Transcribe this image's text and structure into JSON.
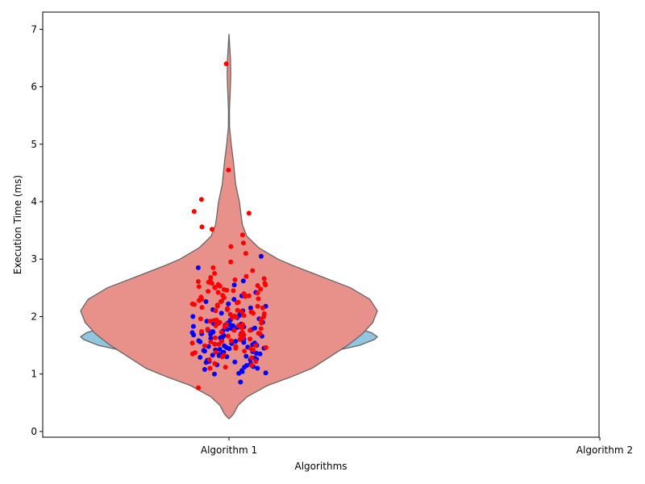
{
  "chart_data": {
    "type": "violin",
    "title": "",
    "xlabel": "Algorithms",
    "ylabel": "Execution Time (ms)",
    "categories": [
      "Algorithm 1",
      "Algorithm 2"
    ],
    "ylim": [
      -0.1,
      7.3
    ],
    "yticks": [
      0,
      1,
      2,
      3,
      4,
      5,
      6,
      7
    ],
    "grid": false,
    "legend": "none",
    "violins": [
      {
        "category": "Algorithm 1",
        "color": "#92c6df",
        "edge_color": "#666666",
        "ymin": 0.95,
        "ymax": 2.3,
        "profile": [
          [
            0.95,
            0.0
          ],
          [
            1.05,
            0.12
          ],
          [
            1.2,
            0.35
          ],
          [
            1.35,
            0.62
          ],
          [
            1.5,
            0.88
          ],
          [
            1.6,
            0.98
          ],
          [
            1.65,
            1.0
          ],
          [
            1.72,
            0.96
          ],
          [
            1.8,
            0.86
          ],
          [
            1.9,
            0.72
          ],
          [
            2.0,
            0.55
          ],
          [
            2.1,
            0.38
          ],
          [
            2.2,
            0.2
          ],
          [
            2.3,
            0.0
          ]
        ]
      },
      {
        "category": "Algorithm 1",
        "color": "#e8908a",
        "edge_color": "#666666",
        "ymin": 0.22,
        "ymax": 6.92,
        "profile": [
          [
            0.22,
            0.0
          ],
          [
            0.3,
            0.03
          ],
          [
            0.45,
            0.06
          ],
          [
            0.6,
            0.12
          ],
          [
            0.8,
            0.26
          ],
          [
            0.95,
            0.42
          ],
          [
            1.1,
            0.56
          ],
          [
            1.3,
            0.68
          ],
          [
            1.5,
            0.8
          ],
          [
            1.7,
            0.9
          ],
          [
            1.9,
            0.97
          ],
          [
            2.1,
            1.0
          ],
          [
            2.3,
            0.95
          ],
          [
            2.5,
            0.82
          ],
          [
            2.7,
            0.62
          ],
          [
            2.9,
            0.42
          ],
          [
            3.0,
            0.33
          ],
          [
            3.2,
            0.2
          ],
          [
            3.4,
            0.12
          ],
          [
            3.6,
            0.09
          ],
          [
            3.8,
            0.08
          ],
          [
            4.0,
            0.07
          ],
          [
            4.3,
            0.045
          ],
          [
            4.7,
            0.03
          ],
          [
            5.0,
            0.015
          ],
          [
            5.3,
            0.004
          ],
          [
            5.6,
            0.003
          ],
          [
            5.9,
            0.008
          ],
          [
            6.2,
            0.012
          ],
          [
            6.5,
            0.01
          ],
          [
            6.7,
            0.005
          ],
          [
            6.92,
            0.0
          ]
        ]
      }
    ],
    "series": [
      {
        "category": "Algorithm 1",
        "color": "#0000ff",
        "values": [
          0.86,
          1.0,
          1.01,
          1.02,
          1.04,
          1.06,
          1.08,
          1.1,
          1.12,
          1.13,
          1.15,
          1.16,
          1.18,
          1.2,
          1.21,
          1.22,
          1.24,
          1.25,
          1.26,
          1.28,
          1.29,
          1.3,
          1.31,
          1.32,
          1.33,
          1.34,
          1.35,
          1.36,
          1.37,
          1.38,
          1.39,
          1.4,
          1.41,
          1.42,
          1.43,
          1.44,
          1.45,
          1.46,
          1.47,
          1.48,
          1.49,
          1.5,
          1.51,
          1.52,
          1.53,
          1.54,
          1.55,
          1.56,
          1.57,
          1.58,
          1.59,
          1.6,
          1.61,
          1.62,
          1.63,
          1.64,
          1.65,
          1.66,
          1.67,
          1.68,
          1.69,
          1.7,
          1.71,
          1.72,
          1.73,
          1.74,
          1.75,
          1.76,
          1.77,
          1.78,
          1.79,
          1.8,
          1.81,
          1.82,
          1.83,
          1.84,
          1.85,
          1.86,
          1.87,
          1.88,
          1.89,
          1.9,
          1.92,
          1.94,
          1.96,
          1.98,
          2.0,
          2.02,
          2.04,
          2.06,
          2.08,
          2.1,
          2.12,
          2.15,
          2.18,
          2.22,
          2.26,
          2.3,
          2.36,
          2.42,
          2.55,
          2.62,
          2.85,
          3.05
        ]
      },
      {
        "category": "Algorithm 1",
        "color": "#ff0000",
        "values": [
          0.76,
          1.1,
          1.12,
          1.15,
          1.18,
          1.22,
          1.25,
          1.28,
          1.3,
          1.33,
          1.35,
          1.38,
          1.4,
          1.42,
          1.44,
          1.46,
          1.48,
          1.5,
          1.52,
          1.54,
          1.56,
          1.58,
          1.6,
          1.62,
          1.64,
          1.66,
          1.68,
          1.7,
          1.72,
          1.74,
          1.76,
          1.78,
          1.8,
          1.82,
          1.84,
          1.86,
          1.88,
          1.9,
          1.92,
          1.94,
          1.96,
          1.98,
          2.0,
          2.02,
          2.04,
          2.06,
          2.08,
          2.1,
          2.12,
          2.14,
          2.16,
          2.18,
          2.2,
          2.22,
          2.24,
          2.26,
          2.28,
          2.3,
          2.32,
          2.34,
          2.36,
          2.38,
          2.4,
          2.42,
          2.44,
          2.46,
          2.48,
          2.5,
          2.52,
          2.54,
          2.56,
          2.58,
          2.6,
          2.62,
          2.64,
          2.66,
          2.68,
          2.7,
          2.75,
          2.8,
          2.85,
          2.95,
          3.1,
          3.22,
          3.28,
          3.42,
          3.52,
          3.56,
          3.8,
          3.83,
          4.04,
          4.55,
          6.4,
          1.52,
          1.68,
          1.84,
          2.01,
          2.18,
          2.33,
          2.47,
          1.45,
          1.63,
          1.79,
          1.95,
          2.11,
          2.27,
          2.41,
          2.58,
          1.37,
          1.57,
          1.73,
          1.89,
          2.05,
          2.21,
          2.37,
          2.53,
          1.49,
          1.71,
          1.93,
          2.15,
          2.35,
          2.55,
          1.61,
          1.87,
          2.09,
          2.31,
          2.51,
          1.76,
          1.99,
          2.25,
          2.45,
          2.61
        ]
      }
    ]
  }
}
